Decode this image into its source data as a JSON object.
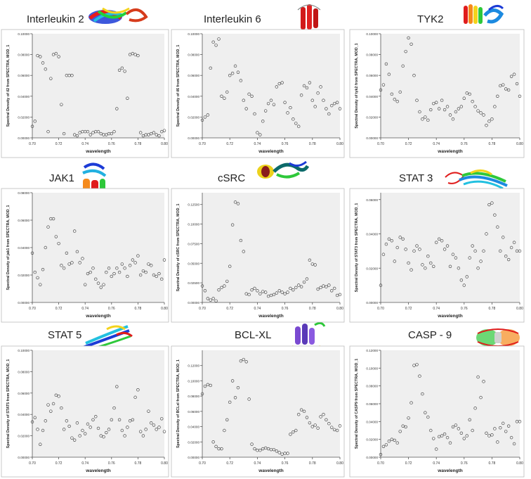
{
  "colors": {
    "plot_bg": "#efefef",
    "axis": "#555555",
    "marker": "#333333",
    "frame": "#bbbbbb"
  },
  "shared": {
    "xlabel": "wavelength",
    "x_ticks": [
      "0.70",
      "0.72",
      "0.74",
      "0.76",
      "0.78",
      "0.80"
    ]
  },
  "chart_data": [
    {
      "type": "scatter",
      "title": "Interleukin 2",
      "ylabel": "Spectral Density of il2 from SPECTRA, MOD_1",
      "xlabel": "wavelength",
      "xlim": [
        0.7,
        0.8
      ],
      "ylim": [
        0,
        0.1
      ],
      "y_ticks": [
        "0.00000",
        "0.02000",
        "0.04000",
        "0.06000",
        "0.08000",
        "0.10000"
      ],
      "x": [
        0.7,
        0.702,
        0.704,
        0.706,
        0.708,
        0.71,
        0.712,
        0.714,
        0.716,
        0.718,
        0.72,
        0.722,
        0.724,
        0.726,
        0.728,
        0.73,
        0.732,
        0.734,
        0.736,
        0.738,
        0.74,
        0.742,
        0.744,
        0.746,
        0.748,
        0.75,
        0.752,
        0.754,
        0.756,
        0.758,
        0.76,
        0.762,
        0.764,
        0.766,
        0.768,
        0.77,
        0.772,
        0.774,
        0.776,
        0.778,
        0.78,
        0.782,
        0.784,
        0.786,
        0.788,
        0.79,
        0.792,
        0.794,
        0.796,
        0.798,
        0.8
      ],
      "y": [
        0.011,
        0.016,
        0.079,
        0.078,
        0.072,
        0.066,
        0.006,
        0.057,
        0.08,
        0.081,
        0.078,
        0.032,
        0.004,
        0.06,
        0.06,
        0.06,
        0.003,
        0.002,
        0.005,
        0.006,
        0.006,
        0.006,
        0.003,
        0.005,
        0.006,
        0.006,
        0.004,
        0.003,
        0.003,
        0.004,
        0.004,
        0.006,
        0.028,
        0.065,
        0.067,
        0.064,
        0.038,
        0.08,
        0.081,
        0.08,
        0.079,
        0.005,
        0.002,
        0.003,
        0.003,
        0.004,
        0.005,
        0.003,
        0.002,
        0.006,
        0.007
      ]
    },
    {
      "type": "scatter",
      "title": "Interleukin 6",
      "ylabel": "Spectral Density of il6 from SPECTRA, MOD_1",
      "xlabel": "wavelength",
      "xlim": [
        0.7,
        0.8
      ],
      "ylim": [
        0,
        0.1
      ],
      "y_ticks": [
        "0.00000",
        "0.02000",
        "0.04000",
        "0.06000",
        "0.08000",
        "0.10000"
      ],
      "x": [
        0.7,
        0.702,
        0.704,
        0.706,
        0.708,
        0.71,
        0.712,
        0.714,
        0.716,
        0.718,
        0.72,
        0.722,
        0.724,
        0.726,
        0.728,
        0.73,
        0.732,
        0.734,
        0.736,
        0.738,
        0.74,
        0.742,
        0.744,
        0.746,
        0.748,
        0.75,
        0.752,
        0.754,
        0.756,
        0.758,
        0.76,
        0.762,
        0.764,
        0.766,
        0.768,
        0.77,
        0.772,
        0.774,
        0.776,
        0.778,
        0.78,
        0.782,
        0.784,
        0.786,
        0.788,
        0.79,
        0.792,
        0.794,
        0.796,
        0.798,
        0.8
      ],
      "y": [
        0.017,
        0.02,
        0.022,
        0.067,
        0.092,
        0.089,
        0.095,
        0.04,
        0.038,
        0.044,
        0.06,
        0.062,
        0.069,
        0.063,
        0.055,
        0.036,
        0.028,
        0.042,
        0.04,
        0.023,
        0.005,
        0.003,
        0.016,
        0.026,
        0.033,
        0.036,
        0.032,
        0.049,
        0.052,
        0.053,
        0.034,
        0.024,
        0.029,
        0.018,
        0.014,
        0.011,
        0.041,
        0.05,
        0.048,
        0.053,
        0.036,
        0.03,
        0.043,
        0.049,
        0.036,
        0.028,
        0.023,
        0.031,
        0.033,
        0.034,
        0.028
      ]
    },
    {
      "type": "scatter",
      "title": "TYK2",
      "ylabel": "Spectral Density of tyk2 from SPECTRA, MOD_1",
      "xlabel": "wavelength",
      "xlim": [
        0.7,
        0.8
      ],
      "ylim": [
        0,
        0.1
      ],
      "y_ticks": [
        "0.00000",
        "0.02000",
        "0.04000",
        "0.06000",
        "0.08000",
        "0.10000"
      ],
      "x": [
        0.7,
        0.702,
        0.704,
        0.706,
        0.708,
        0.71,
        0.712,
        0.714,
        0.716,
        0.718,
        0.72,
        0.722,
        0.724,
        0.726,
        0.728,
        0.73,
        0.732,
        0.734,
        0.736,
        0.738,
        0.74,
        0.742,
        0.744,
        0.746,
        0.748,
        0.75,
        0.752,
        0.754,
        0.756,
        0.758,
        0.76,
        0.762,
        0.764,
        0.766,
        0.768,
        0.77,
        0.772,
        0.774,
        0.776,
        0.778,
        0.78,
        0.782,
        0.784,
        0.786,
        0.788,
        0.79,
        0.792,
        0.794,
        0.796,
        0.798,
        0.8
      ],
      "y": [
        0.046,
        0.051,
        0.071,
        0.061,
        0.042,
        0.037,
        0.035,
        0.044,
        0.069,
        0.083,
        0.096,
        0.09,
        0.06,
        0.036,
        0.025,
        0.018,
        0.02,
        0.017,
        0.027,
        0.033,
        0.034,
        0.028,
        0.036,
        0.027,
        0.03,
        0.022,
        0.018,
        0.025,
        0.028,
        0.03,
        0.038,
        0.043,
        0.042,
        0.035,
        0.03,
        0.026,
        0.024,
        0.022,
        0.012,
        0.016,
        0.018,
        0.03,
        0.04,
        0.05,
        0.051,
        0.047,
        0.046,
        0.059,
        0.061,
        0.052,
        0.04
      ]
    },
    {
      "type": "scatter",
      "title": "JAK1",
      "ylabel": "Spectral Density of jak1 from SPECTRA, MOD_1",
      "xlabel": "wavelength",
      "xlim": [
        0.7,
        0.8
      ],
      "ylim": [
        0,
        0.08
      ],
      "y_ticks": [
        "0.00000",
        "0.02000",
        "0.04000",
        "0.06000",
        "0.08000"
      ],
      "x": [
        0.7,
        0.702,
        0.704,
        0.706,
        0.708,
        0.71,
        0.712,
        0.714,
        0.716,
        0.718,
        0.72,
        0.722,
        0.724,
        0.726,
        0.728,
        0.73,
        0.732,
        0.734,
        0.736,
        0.738,
        0.74,
        0.742,
        0.744,
        0.746,
        0.748,
        0.75,
        0.752,
        0.754,
        0.756,
        0.758,
        0.76,
        0.762,
        0.764,
        0.766,
        0.768,
        0.77,
        0.772,
        0.774,
        0.776,
        0.778,
        0.78,
        0.782,
        0.784,
        0.786,
        0.788,
        0.79,
        0.792,
        0.794,
        0.796,
        0.798,
        0.8
      ],
      "y": [
        0.036,
        0.022,
        0.018,
        0.013,
        0.024,
        0.04,
        0.055,
        0.061,
        0.061,
        0.048,
        0.043,
        0.027,
        0.025,
        0.036,
        0.028,
        0.029,
        0.052,
        0.037,
        0.029,
        0.032,
        0.013,
        0.021,
        0.022,
        0.025,
        0.017,
        0.014,
        0.011,
        0.013,
        0.022,
        0.025,
        0.019,
        0.021,
        0.025,
        0.022,
        0.028,
        0.025,
        0.019,
        0.027,
        0.031,
        0.029,
        0.034,
        0.02,
        0.023,
        0.022,
        0.028,
        0.027,
        0.02,
        0.019,
        0.021,
        0.017,
        0.031
      ]
    },
    {
      "type": "scatter",
      "title": "cSRC",
      "ylabel": "Spectral Density of cSRC from SPECTRA, MOD_1",
      "xlabel": "wavelength",
      "xlim": [
        0.7,
        0.8
      ],
      "ylim": [
        0,
        0.14
      ],
      "y_ticks": [
        "0.00000",
        "0.02500",
        "0.05000",
        "0.07500",
        "0.10000",
        "0.12500"
      ],
      "x": [
        0.7,
        0.702,
        0.704,
        0.706,
        0.708,
        0.71,
        0.712,
        0.714,
        0.716,
        0.718,
        0.72,
        0.722,
        0.724,
        0.726,
        0.728,
        0.73,
        0.732,
        0.734,
        0.736,
        0.738,
        0.74,
        0.742,
        0.744,
        0.746,
        0.748,
        0.75,
        0.752,
        0.754,
        0.756,
        0.758,
        0.76,
        0.762,
        0.764,
        0.766,
        0.768,
        0.77,
        0.772,
        0.774,
        0.776,
        0.778,
        0.78,
        0.782,
        0.784,
        0.786,
        0.788,
        0.79,
        0.792,
        0.794,
        0.796,
        0.798,
        0.8
      ],
      "y": [
        0.021,
        0.015,
        0.005,
        0.003,
        0.005,
        0.002,
        0.016,
        0.019,
        0.021,
        0.027,
        0.046,
        0.099,
        0.128,
        0.126,
        0.079,
        0.065,
        0.011,
        0.01,
        0.016,
        0.018,
        0.015,
        0.011,
        0.014,
        0.013,
        0.008,
        0.009,
        0.01,
        0.012,
        0.015,
        0.013,
        0.011,
        0.013,
        0.018,
        0.016,
        0.019,
        0.022,
        0.02,
        0.026,
        0.03,
        0.054,
        0.049,
        0.048,
        0.017,
        0.019,
        0.021,
        0.02,
        0.022,
        0.015,
        0.018,
        0.009,
        0.01
      ]
    },
    {
      "type": "scatter",
      "title": "STAT 3",
      "ylabel": "Spectral Density of STAT3 from SPECTRA, MOD_1",
      "xlabel": "wavelength",
      "xlim": [
        0.7,
        0.8
      ],
      "ylim": [
        0,
        0.064
      ],
      "y_ticks": [
        "0.00000",
        "0.02000",
        "0.04000",
        "0.06000"
      ],
      "x": [
        0.7,
        0.702,
        0.704,
        0.706,
        0.708,
        0.71,
        0.712,
        0.714,
        0.716,
        0.718,
        0.72,
        0.722,
        0.724,
        0.726,
        0.728,
        0.73,
        0.732,
        0.734,
        0.736,
        0.738,
        0.74,
        0.742,
        0.744,
        0.746,
        0.748,
        0.75,
        0.752,
        0.754,
        0.756,
        0.758,
        0.76,
        0.762,
        0.764,
        0.766,
        0.768,
        0.77,
        0.772,
        0.774,
        0.776,
        0.778,
        0.78,
        0.782,
        0.784,
        0.786,
        0.788,
        0.79,
        0.792,
        0.794,
        0.796,
        0.798,
        0.8
      ],
      "y": [
        0.01,
        0.028,
        0.034,
        0.037,
        0.036,
        0.024,
        0.032,
        0.038,
        0.037,
        0.031,
        0.023,
        0.019,
        0.03,
        0.033,
        0.031,
        0.022,
        0.02,
        0.027,
        0.023,
        0.021,
        0.035,
        0.037,
        0.036,
        0.031,
        0.033,
        0.021,
        0.028,
        0.026,
        0.02,
        0.013,
        0.01,
        0.015,
        0.026,
        0.033,
        0.03,
        0.02,
        0.024,
        0.03,
        0.04,
        0.057,
        0.058,
        0.051,
        0.044,
        0.03,
        0.038,
        0.027,
        0.025,
        0.032,
        0.035,
        0.03,
        0.03
      ]
    },
    {
      "type": "scatter",
      "title": "STAT 5",
      "ylabel": "Spectral Density of STAT5 from SPECTRA, MOD_1",
      "xlabel": "wavelength",
      "xlim": [
        0.7,
        0.8
      ],
      "ylim": [
        0,
        0.1
      ],
      "y_ticks": [
        "0.00000",
        "0.02000",
        "0.04000",
        "0.06000",
        "0.08000",
        "0.10000"
      ],
      "x": [
        0.7,
        0.702,
        0.704,
        0.706,
        0.708,
        0.71,
        0.712,
        0.714,
        0.716,
        0.718,
        0.72,
        0.722,
        0.724,
        0.726,
        0.728,
        0.73,
        0.732,
        0.734,
        0.736,
        0.738,
        0.74,
        0.742,
        0.744,
        0.746,
        0.748,
        0.75,
        0.752,
        0.754,
        0.756,
        0.758,
        0.76,
        0.762,
        0.764,
        0.766,
        0.768,
        0.77,
        0.772,
        0.774,
        0.776,
        0.778,
        0.78,
        0.782,
        0.784,
        0.786,
        0.788,
        0.79,
        0.792,
        0.794,
        0.796,
        0.798,
        0.8
      ],
      "y": [
        0.033,
        0.037,
        0.026,
        0.012,
        0.025,
        0.034,
        0.049,
        0.043,
        0.05,
        0.058,
        0.057,
        0.046,
        0.026,
        0.034,
        0.029,
        0.018,
        0.016,
        0.032,
        0.02,
        0.025,
        0.022,
        0.031,
        0.028,
        0.035,
        0.038,
        0.027,
        0.02,
        0.019,
        0.023,
        0.026,
        0.035,
        0.046,
        0.066,
        0.035,
        0.025,
        0.02,
        0.028,
        0.034,
        0.035,
        0.056,
        0.063,
        0.024,
        0.02,
        0.026,
        0.043,
        0.032,
        0.03,
        0.026,
        0.028,
        0.036,
        0.024
      ]
    },
    {
      "type": "scatter",
      "title": "BCL-XL",
      "ylabel": "Spectral Density of BCLxl from SPECTRA, MOD_1",
      "xlabel": "wavelength",
      "xlim": [
        0.7,
        0.8
      ],
      "ylim": [
        0,
        0.14
      ],
      "y_ticks": [
        "0.00000",
        "0.02000",
        "0.04000",
        "0.06000",
        "0.08000",
        "0.10000",
        "0.12000"
      ],
      "x": [
        0.7,
        0.702,
        0.704,
        0.706,
        0.708,
        0.71,
        0.712,
        0.714,
        0.716,
        0.718,
        0.72,
        0.722,
        0.724,
        0.726,
        0.728,
        0.73,
        0.732,
        0.734,
        0.736,
        0.738,
        0.74,
        0.742,
        0.744,
        0.746,
        0.748,
        0.75,
        0.752,
        0.754,
        0.756,
        0.758,
        0.76,
        0.762,
        0.764,
        0.766,
        0.768,
        0.77,
        0.772,
        0.774,
        0.776,
        0.778,
        0.78,
        0.782,
        0.784,
        0.786,
        0.788,
        0.79,
        0.792,
        0.794,
        0.796,
        0.798,
        0.8
      ],
      "y": [
        0.083,
        0.093,
        0.095,
        0.094,
        0.02,
        0.014,
        0.011,
        0.011,
        0.035,
        0.049,
        0.072,
        0.1,
        0.078,
        0.091,
        0.126,
        0.128,
        0.125,
        0.076,
        0.017,
        0.011,
        0.009,
        0.009,
        0.011,
        0.012,
        0.011,
        0.01,
        0.01,
        0.008,
        0.006,
        0.004,
        0.005,
        0.005,
        0.03,
        0.033,
        0.035,
        0.056,
        0.062,
        0.06,
        0.052,
        0.045,
        0.04,
        0.042,
        0.038,
        0.053,
        0.056,
        0.049,
        0.044,
        0.039,
        0.036,
        0.035,
        0.041
      ]
    },
    {
      "type": "scatter",
      "title": "CASP - 9",
      "ylabel": "Spectral Density of CASP9 from SPECTRA, MOD_1",
      "xlabel": "wavelength",
      "xlim": [
        0.7,
        0.8
      ],
      "ylim": [
        0,
        0.12
      ],
      "y_ticks": [
        "0.00000",
        "0.02000",
        "0.04000",
        "0.06000",
        "0.08000",
        "0.10000",
        "0.12000"
      ],
      "x": [
        0.7,
        0.702,
        0.704,
        0.706,
        0.708,
        0.71,
        0.712,
        0.714,
        0.716,
        0.718,
        0.72,
        0.722,
        0.724,
        0.726,
        0.728,
        0.73,
        0.732,
        0.734,
        0.736,
        0.738,
        0.74,
        0.742,
        0.744,
        0.746,
        0.748,
        0.75,
        0.752,
        0.754,
        0.756,
        0.758,
        0.76,
        0.762,
        0.764,
        0.766,
        0.768,
        0.77,
        0.772,
        0.774,
        0.776,
        0.778,
        0.78,
        0.782,
        0.784,
        0.786,
        0.788,
        0.79,
        0.792,
        0.794,
        0.796,
        0.798,
        0.8
      ],
      "y": [
        0.003,
        0.012,
        0.014,
        0.018,
        0.02,
        0.019,
        0.016,
        0.029,
        0.035,
        0.034,
        0.044,
        0.061,
        0.103,
        0.104,
        0.091,
        0.071,
        0.05,
        0.045,
        0.03,
        0.021,
        0.009,
        0.023,
        0.024,
        0.026,
        0.022,
        0.016,
        0.034,
        0.036,
        0.032,
        0.027,
        0.021,
        0.024,
        0.042,
        0.03,
        0.055,
        0.09,
        0.067,
        0.085,
        0.027,
        0.024,
        0.025,
        0.032,
        0.017,
        0.033,
        0.038,
        0.029,
        0.035,
        0.022,
        0.015,
        0.04,
        0.04
      ]
    }
  ]
}
